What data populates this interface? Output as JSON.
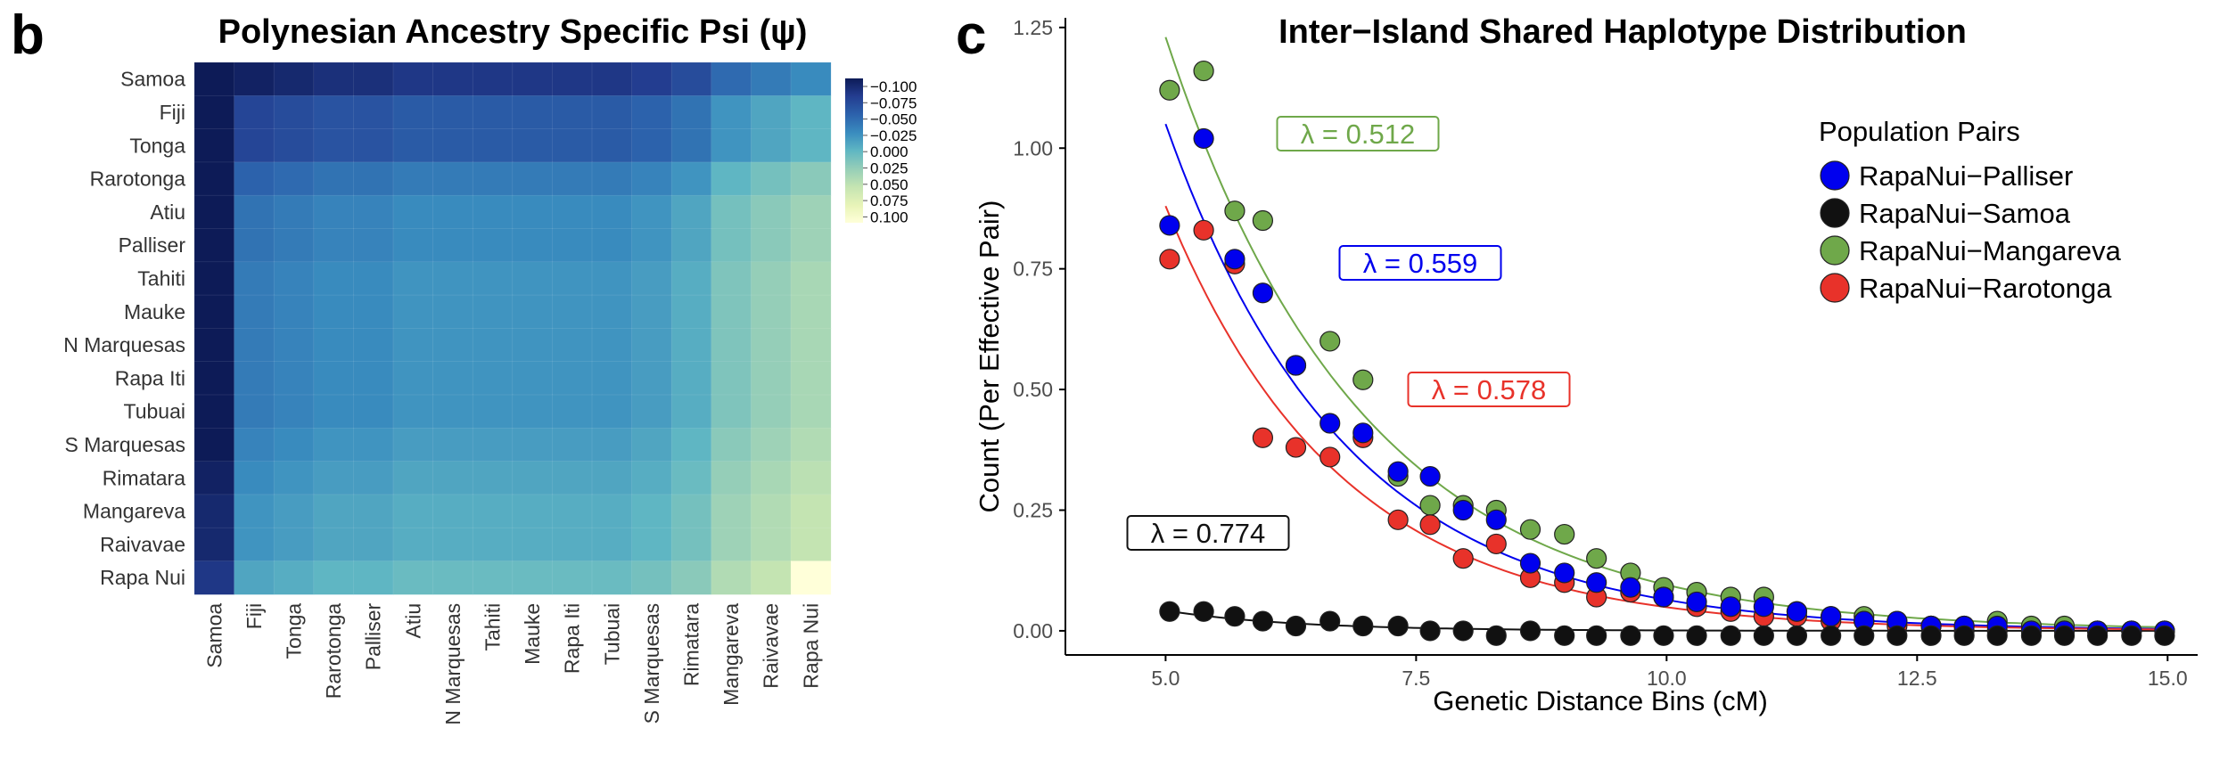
{
  "panel_b": {
    "letter": "b",
    "colorbar_ticks": [
      "−0.100",
      "−0.075",
      "−0.050",
      "−0.025",
      "0.000",
      "0.025",
      "0.050",
      "0.075",
      "0.100"
    ]
  },
  "panel_c": {
    "letter": "c"
  },
  "colors": {
    "heat_low": "#0d1b57",
    "heat_high": "#ffffd9",
    "palliser": "#0000ee",
    "samoa": "#111111",
    "mangareva": "#6fa84a",
    "rarotonga": "#e8322a"
  },
  "chart_data": [
    {
      "type": "heatmap",
      "title": "Polynesian Ancestry Specific Psi (ψ)",
      "rows": [
        "Samoa",
        "Fiji",
        "Tonga",
        "Rarotonga",
        "Atiu",
        "Palliser",
        "Tahiti",
        "Mauke",
        "N Marquesas",
        "Rapa Iti",
        "Tubuai",
        "S Marquesas",
        "Rimatara",
        "Mangareva",
        "Raivavae",
        "Rapa Nui"
      ],
      "columns": [
        "Samoa",
        "Fiji",
        "Tonga",
        "Rarotonga",
        "Palliser",
        "Atiu",
        "N Marquesas",
        "Tahiti",
        "Mauke",
        "Rapa Iti",
        "Tubuai",
        "S Marquesas",
        "Rimatara",
        "Mangareva",
        "Raivavae",
        "Rapa Nui"
      ],
      "value_range": [
        -0.1,
        0.1
      ],
      "colorbar_ticks": [
        -0.1,
        -0.075,
        -0.05,
        -0.025,
        0.0,
        0.025,
        0.05,
        0.075,
        0.1
      ],
      "row_offsets": [
        -0.085,
        -0.06,
        -0.06,
        -0.04,
        -0.03,
        -0.03,
        -0.025,
        -0.025,
        -0.025,
        -0.025,
        -0.025,
        -0.02,
        -0.015,
        -0.01,
        -0.01,
        0.0
      ],
      "column_offsets": [
        -0.08,
        -0.01,
        -0.005,
        0.0,
        0.0,
        0.005,
        0.005,
        0.005,
        0.005,
        0.005,
        0.005,
        0.01,
        0.02,
        0.04,
        0.05,
        0.06
      ],
      "values_note": "value(row, col) = row_offsets[row] + column_offsets[col]; diagonal 0"
    },
    {
      "type": "scatter",
      "title": "Inter−Island Shared Haplotype Distribution",
      "xlabel": "Genetic Distance Bins (cM)",
      "ylabel": "Count (Per Effective Pair)",
      "xlim": [
        4.0,
        15.3
      ],
      "ylim": [
        -0.05,
        1.27
      ],
      "xticks": [
        5.0,
        7.5,
        10.0,
        12.5,
        15.0
      ],
      "yticks": [
        0.0,
        0.25,
        0.5,
        0.75,
        1.0,
        1.25
      ],
      "xtick_labels": [
        "5.0",
        "7.5",
        "10.0",
        "12.5",
        "15.0"
      ],
      "ytick_labels": [
        "0.00",
        "0.25",
        "0.50",
        "0.75",
        "1.00",
        "1.25"
      ],
      "legend_title": "Population Pairs",
      "legend_position": "top-right",
      "grid": false,
      "x": [
        5.04,
        5.38,
        5.69,
        5.97,
        6.3,
        6.64,
        6.97,
        7.32,
        7.64,
        7.97,
        8.3,
        8.64,
        8.98,
        9.3,
        9.64,
        9.97,
        10.3,
        10.64,
        10.97,
        11.3,
        11.64,
        11.97,
        12.3,
        12.64,
        12.97,
        13.3,
        13.64,
        13.97,
        14.3,
        14.64,
        14.97
      ],
      "series": [
        {
          "name": "RapaNui−Palliser",
          "color": "#0000ee",
          "lambda_label": "λ = 0.559",
          "values": [
            0.84,
            1.02,
            0.77,
            0.7,
            0.55,
            0.43,
            0.41,
            0.33,
            0.32,
            0.25,
            0.23,
            0.14,
            0.12,
            0.1,
            0.09,
            0.07,
            0.06,
            0.05,
            0.05,
            0.04,
            0.03,
            0.02,
            0.02,
            0.01,
            0.01,
            0.01,
            0.0,
            0.0,
            0.0,
            0.0,
            0.0
          ]
        },
        {
          "name": "RapaNui−Samoa",
          "color": "#111111",
          "lambda_label": "λ = 0.774",
          "values": [
            0.04,
            0.04,
            0.03,
            0.02,
            0.01,
            0.02,
            0.01,
            0.01,
            0.0,
            0.0,
            -0.01,
            0.0,
            -0.01,
            -0.01,
            -0.01,
            -0.01,
            -0.01,
            -0.01,
            -0.01,
            -0.01,
            -0.01,
            -0.01,
            -0.01,
            -0.01,
            -0.01,
            -0.01,
            -0.01,
            -0.01,
            -0.01,
            -0.01,
            -0.01
          ]
        },
        {
          "name": "RapaNui−Mangareva",
          "color": "#6fa84a",
          "lambda_label": "λ = 0.512",
          "values": [
            1.12,
            1.16,
            0.87,
            0.85,
            0.55,
            0.6,
            0.52,
            0.32,
            0.26,
            0.26,
            0.25,
            0.21,
            0.2,
            0.15,
            0.12,
            0.09,
            0.08,
            0.07,
            0.07,
            0.04,
            0.03,
            0.03,
            0.02,
            0.01,
            0.01,
            0.02,
            0.01,
            0.01,
            0.0,
            0.0,
            0.0
          ]
        },
        {
          "name": "RapaNui−Rarotonga",
          "color": "#e8322a",
          "lambda_label": "λ = 0.578",
          "values": [
            0.77,
            0.83,
            0.76,
            0.4,
            0.38,
            0.36,
            0.4,
            0.23,
            0.22,
            0.15,
            0.18,
            0.11,
            0.1,
            0.07,
            0.08,
            0.07,
            0.05,
            0.04,
            0.03,
            0.03,
            0.02,
            0.02,
            0.01,
            0.01,
            0.0,
            0.0,
            0.0,
            0.0,
            0.0,
            0.0,
            0.0
          ]
        }
      ],
      "fit_curves": [
        {
          "series": "RapaNui−Palliser",
          "a": 1.05,
          "lambda": 0.559,
          "x0": 5.0,
          "x_end": 14.9
        },
        {
          "series": "RapaNui−Samoa",
          "a": 0.042,
          "lambda": 0.774,
          "x0": 5.0,
          "x_end": 14.9
        },
        {
          "series": "RapaNui−Mangareva",
          "a": 1.23,
          "lambda": 0.512,
          "x0": 5.0,
          "x_end": 14.9
        },
        {
          "series": "RapaNui−Rarotonga",
          "a": 0.88,
          "lambda": 0.578,
          "x0": 5.0,
          "x_end": 14.9
        }
      ]
    }
  ]
}
